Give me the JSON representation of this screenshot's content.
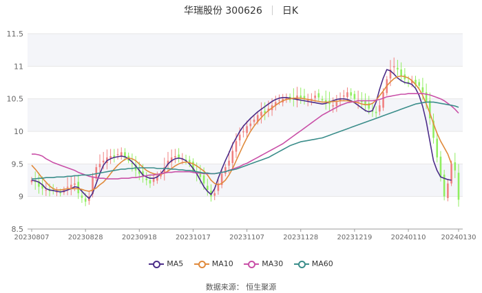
{
  "header": {
    "stock_name": "华瑞股份 300626",
    "period": "日K"
  },
  "source": "数据来源： 恒生聚源",
  "chart_data": {
    "type": "candlestick",
    "title": "华瑞股份 300626 日K",
    "ylim": [
      8.5,
      11.5
    ],
    "yticks": [
      "8.5",
      "9",
      "9.5",
      "10",
      "10.5",
      "11",
      "11.5"
    ],
    "xticks": [
      "20230807",
      "20230828",
      "20230918",
      "20231017",
      "20231107",
      "20231128",
      "20231219",
      "20240110",
      "20240130"
    ],
    "xtick_index": [
      0,
      15,
      30,
      45,
      60,
      75,
      90,
      105,
      119
    ],
    "legend_position": "bottom-center",
    "up_color": "#f08080",
    "down_color": "#90ee60",
    "closes": [
      9.25,
      9.22,
      9.15,
      9.12,
      9.1,
      9.08,
      9.1,
      9.07,
      9.05,
      9.1,
      9.15,
      9.18,
      9.2,
      9.05,
      8.98,
      8.92,
      9.0,
      9.3,
      9.45,
      9.5,
      9.55,
      9.6,
      9.62,
      9.6,
      9.65,
      9.68,
      9.6,
      9.55,
      9.5,
      9.4,
      9.35,
      9.3,
      9.25,
      9.2,
      9.28,
      9.32,
      9.35,
      9.45,
      9.55,
      9.6,
      9.62,
      9.6,
      9.58,
      9.55,
      9.5,
      9.4,
      9.35,
      9.3,
      9.2,
      9.1,
      9.0,
      9.05,
      9.2,
      9.35,
      9.45,
      9.55,
      9.7,
      9.85,
      9.95,
      10.0,
      10.08,
      10.12,
      10.18,
      10.25,
      10.3,
      10.28,
      10.35,
      10.4,
      10.45,
      10.48,
      10.5,
      10.52,
      10.48,
      10.5,
      10.55,
      10.52,
      10.5,
      10.48,
      10.5,
      10.55,
      10.52,
      10.48,
      10.45,
      10.42,
      10.4,
      10.45,
      10.5,
      10.55,
      10.6,
      10.55,
      10.5,
      10.48,
      10.45,
      10.4,
      10.35,
      10.3,
      10.28,
      10.4,
      10.6,
      10.8,
      10.95,
      11.0,
      10.95,
      10.85,
      10.8,
      10.75,
      10.78,
      10.72,
      10.7,
      10.6,
      10.45,
      10.2,
      9.9,
      9.6,
      9.3,
      9.0,
      9.2,
      9.5,
      9.4,
      8.95
    ],
    "series": [
      {
        "name": "MA5",
        "color": "#4b2c88",
        "values": [
          9.25,
          9.24,
          9.22,
          9.18,
          9.12,
          9.1,
          9.09,
          9.08,
          9.07,
          9.08,
          9.1,
          9.12,
          9.15,
          9.14,
          9.08,
          9.02,
          8.97,
          9.05,
          9.2,
          9.35,
          9.48,
          9.55,
          9.58,
          9.6,
          9.61,
          9.62,
          9.61,
          9.58,
          9.53,
          9.47,
          9.4,
          9.33,
          9.3,
          9.28,
          9.28,
          9.3,
          9.35,
          9.42,
          9.5,
          9.55,
          9.58,
          9.59,
          9.58,
          9.55,
          9.5,
          9.43,
          9.35,
          9.25,
          9.15,
          9.08,
          9.03,
          9.12,
          9.28,
          9.42,
          9.55,
          9.67,
          9.8,
          9.9,
          10.0,
          10.08,
          10.14,
          10.2,
          10.25,
          10.3,
          10.34,
          10.38,
          10.42,
          10.46,
          10.49,
          10.51,
          10.52,
          10.52,
          10.51,
          10.5,
          10.49,
          10.48,
          10.47,
          10.46,
          10.45,
          10.44,
          10.43,
          10.42,
          10.43,
          10.45,
          10.47,
          10.49,
          10.5,
          10.5,
          10.49,
          10.47,
          10.44,
          10.4,
          10.36,
          10.32,
          10.3,
          10.32,
          10.45,
          10.65,
          10.82,
          10.95,
          10.93,
          10.88,
          10.82,
          10.78,
          10.75,
          10.74,
          10.72,
          10.66,
          10.55,
          10.38,
          10.15,
          9.85,
          9.55,
          9.4,
          9.3,
          9.28,
          9.26,
          9.25
        ]
      },
      {
        "name": "MA10",
        "color": "#e08a3c",
        "values": [
          9.48,
          9.42,
          9.35,
          9.28,
          9.22,
          9.16,
          9.12,
          9.1,
          9.1,
          9.11,
          9.12,
          9.12,
          9.12,
          9.12,
          9.11,
          9.09,
          9.08,
          9.1,
          9.13,
          9.18,
          9.22,
          9.28,
          9.35,
          9.42,
          9.48,
          9.53,
          9.57,
          9.59,
          9.58,
          9.55,
          9.5,
          9.45,
          9.4,
          9.37,
          9.35,
          9.34,
          9.34,
          9.36,
          9.39,
          9.43,
          9.47,
          9.5,
          9.52,
          9.53,
          9.52,
          9.5,
          9.47,
          9.43,
          9.39,
          9.33,
          9.25,
          9.2,
          9.18,
          9.2,
          9.25,
          9.33,
          9.43,
          9.55,
          9.67,
          9.79,
          9.9,
          10.0,
          10.08,
          10.15,
          10.21,
          10.27,
          10.32,
          10.36,
          10.4,
          10.44,
          10.47,
          10.49,
          10.5,
          10.51,
          10.51,
          10.51,
          10.5,
          10.49,
          10.48,
          10.47,
          10.46,
          10.45,
          10.45,
          10.45,
          10.46,
          10.46,
          10.47,
          10.47,
          10.47,
          10.46,
          10.45,
          10.44,
          10.42,
          10.41,
          10.41,
          10.43,
          10.48,
          10.55,
          10.62,
          10.7,
          10.76,
          10.81,
          10.84,
          10.85,
          10.84,
          10.82,
          10.78,
          10.72,
          10.65,
          10.55,
          10.42,
          10.28,
          10.12,
          9.97,
          9.85,
          9.75,
          9.65,
          9.5
        ]
      },
      {
        "name": "MA30",
        "color": "#c94fa7",
        "values": [
          9.65,
          9.65,
          9.64,
          9.62,
          9.58,
          9.55,
          9.52,
          9.5,
          9.48,
          9.46,
          9.44,
          9.42,
          9.4,
          9.37,
          9.35,
          9.33,
          9.31,
          9.3,
          9.29,
          9.28,
          9.28,
          9.27,
          9.27,
          9.27,
          9.27,
          9.28,
          9.28,
          9.28,
          9.29,
          9.29,
          9.3,
          9.31,
          9.32,
          9.33,
          9.33,
          9.34,
          9.35,
          9.36,
          9.37,
          9.37,
          9.38,
          9.38,
          9.38,
          9.38,
          9.38,
          9.37,
          9.36,
          9.36,
          9.35,
          9.35,
          9.35,
          9.35,
          9.36,
          9.37,
          9.38,
          9.4,
          9.42,
          9.44,
          9.46,
          9.49,
          9.51,
          9.54,
          9.57,
          9.6,
          9.63,
          9.66,
          9.69,
          9.72,
          9.75,
          9.78,
          9.81,
          9.85,
          9.89,
          9.93,
          9.97,
          10.01,
          10.05,
          10.09,
          10.13,
          10.17,
          10.21,
          10.25,
          10.28,
          10.31,
          10.34,
          10.37,
          10.4,
          10.42,
          10.44,
          10.45,
          10.46,
          10.47,
          10.47,
          10.47,
          10.47,
          10.47,
          10.48,
          10.49,
          10.51,
          10.53,
          10.54,
          10.55,
          10.56,
          10.57,
          10.57,
          10.58,
          10.58,
          10.58,
          10.58,
          10.58,
          10.57,
          10.56,
          10.54,
          10.52,
          10.5,
          10.47,
          10.43,
          10.39,
          10.34,
          10.28
        ]
      },
      {
        "name": "MA60",
        "color": "#3a8d8a",
        "values": [
          9.27,
          9.27,
          9.28,
          9.28,
          9.29,
          9.29,
          9.29,
          9.3,
          9.3,
          9.3,
          9.31,
          9.31,
          9.32,
          9.32,
          9.33,
          9.33,
          9.33,
          9.34,
          9.35,
          9.36,
          9.37,
          9.38,
          9.39,
          9.4,
          9.41,
          9.42,
          9.42,
          9.43,
          9.43,
          9.44,
          9.44,
          9.44,
          9.44,
          9.44,
          9.44,
          9.43,
          9.43,
          9.43,
          9.43,
          9.42,
          9.42,
          9.41,
          9.41,
          9.4,
          9.4,
          9.39,
          9.38,
          9.37,
          9.36,
          9.36,
          9.35,
          9.35,
          9.36,
          9.37,
          9.38,
          9.4,
          9.41,
          9.42,
          9.44,
          9.46,
          9.48,
          9.5,
          9.52,
          9.54,
          9.56,
          9.58,
          9.6,
          9.63,
          9.66,
          9.69,
          9.72,
          9.75,
          9.78,
          9.8,
          9.82,
          9.84,
          9.85,
          9.86,
          9.87,
          9.88,
          9.89,
          9.9,
          9.92,
          9.94,
          9.96,
          9.98,
          10.0,
          10.02,
          10.04,
          10.06,
          10.08,
          10.1,
          10.12,
          10.14,
          10.16,
          10.18,
          10.2,
          10.22,
          10.24,
          10.26,
          10.28,
          10.3,
          10.32,
          10.34,
          10.36,
          10.38,
          10.4,
          10.42,
          10.43,
          10.44,
          10.45,
          10.45,
          10.45,
          10.44,
          10.43,
          10.42,
          10.41,
          10.4,
          10.39,
          10.37
        ]
      }
    ]
  }
}
